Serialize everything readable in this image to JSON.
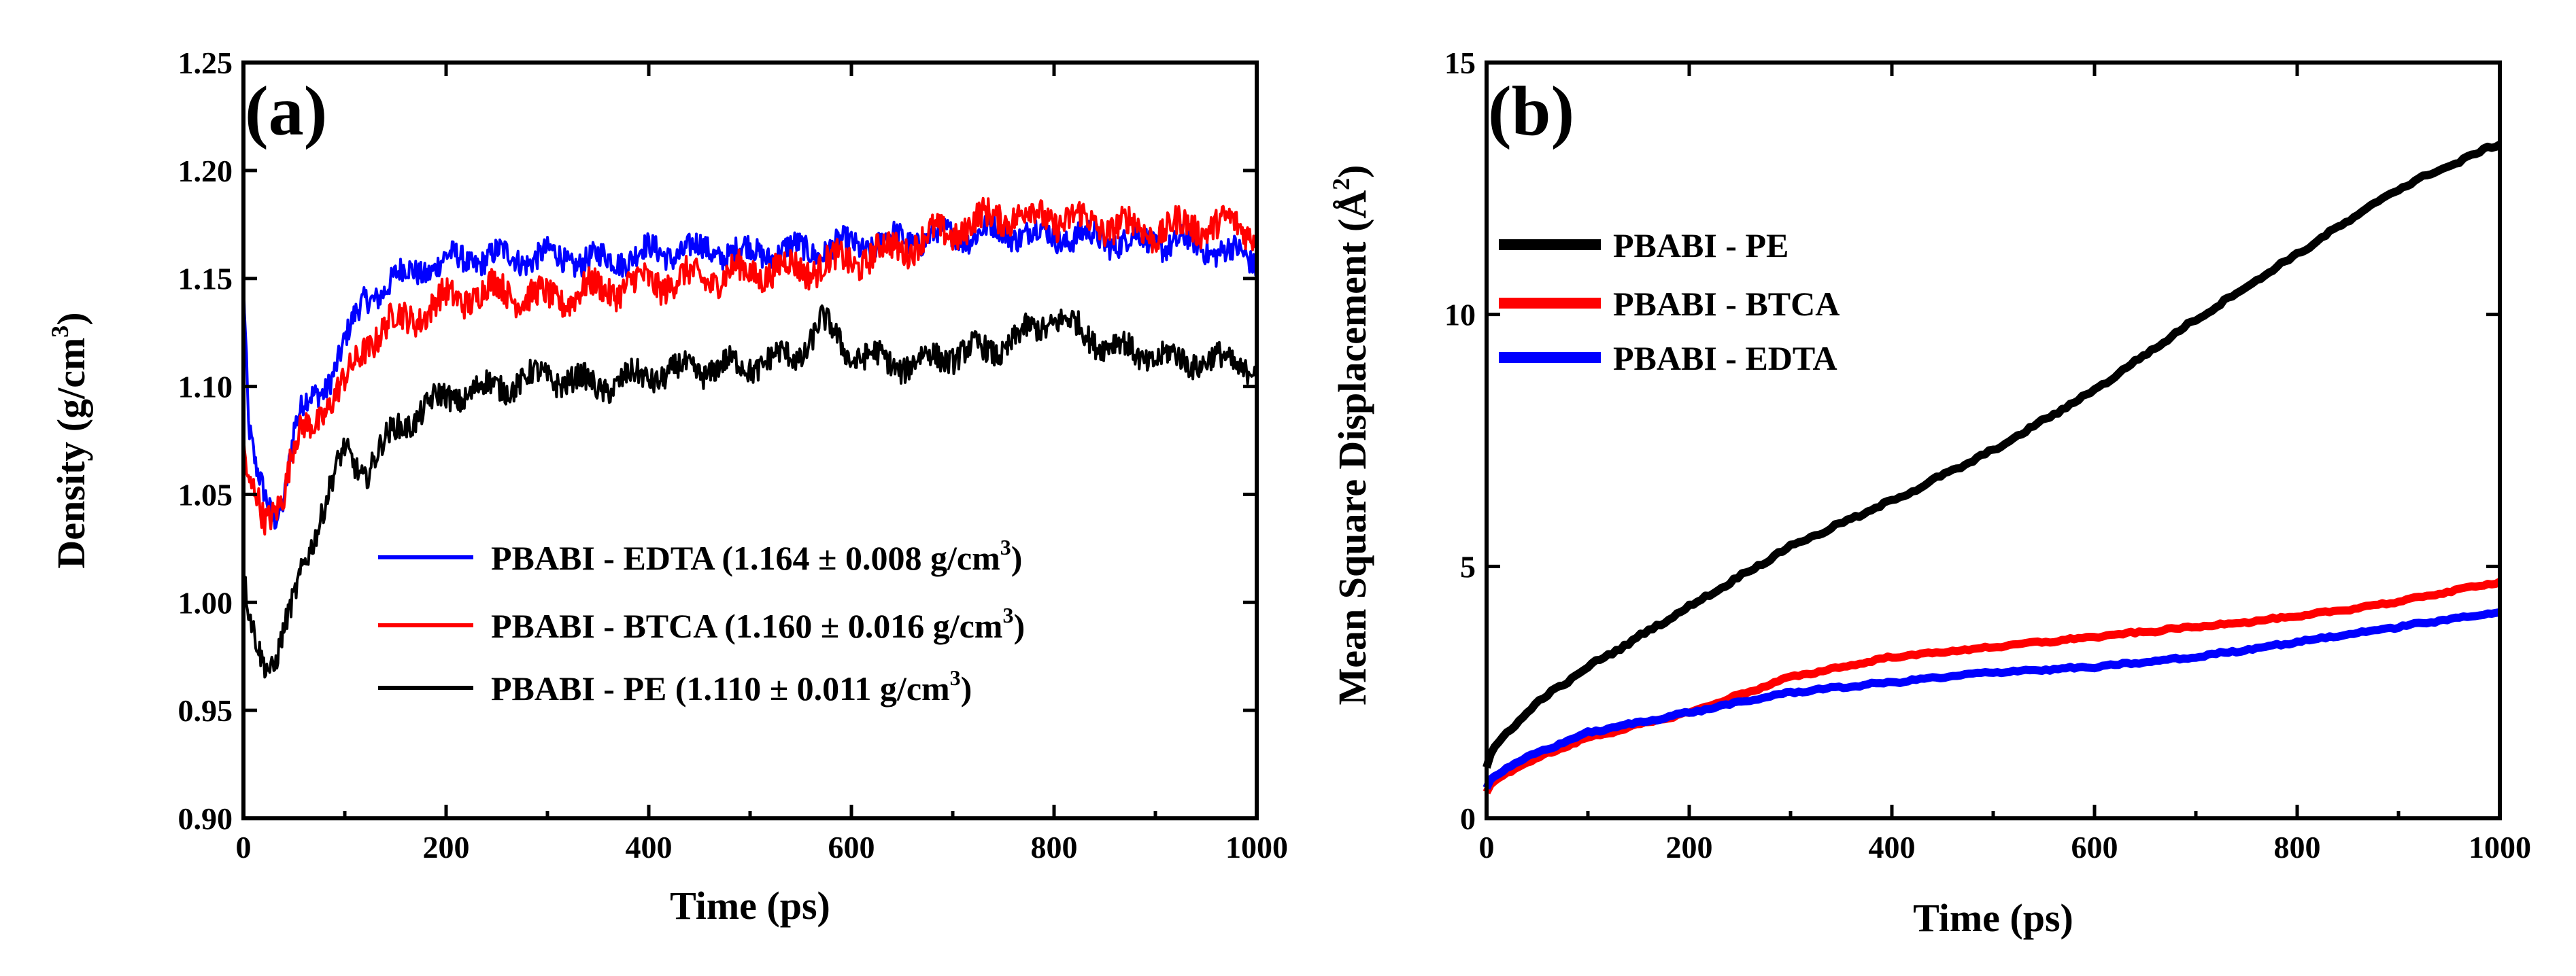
{
  "colors": {
    "edta": "#0000ff",
    "btca": "#ff0000",
    "pe": "#000000"
  },
  "chart_data": [
    {
      "panel": "(a)",
      "type": "line",
      "xlabel": "Time (ps)",
      "ylabel_main": "Density (g/cm",
      "ylabel_sup": "3",
      "ylabel_end": ")",
      "xlim": [
        0,
        1000
      ],
      "ylim": [
        0.9,
        1.25
      ],
      "xticks": [
        0,
        200,
        400,
        600,
        800,
        1000
      ],
      "xtick_labels": [
        "0",
        "200",
        "400",
        "600",
        "800",
        "1000"
      ],
      "yticks": [
        0.9,
        0.95,
        1.0,
        1.05,
        1.1,
        1.15,
        1.2,
        1.25
      ],
      "ytick_labels": [
        "0.90",
        "0.95",
        "1.00",
        "1.05",
        "1.10",
        "1.15",
        "1.20",
        "1.25"
      ],
      "legend_position": "lower-right",
      "series": [
        {
          "key": "edta",
          "name": "PBABI - EDTA (1.164 ± 0.008 g/cm",
          "name_sup": "3",
          "name_end": ")",
          "noise": 0.006,
          "x": [
            0,
            5,
            12,
            20,
            30,
            40,
            50,
            60,
            80,
            100,
            120,
            150,
            180,
            200,
            250,
            300,
            350,
            400,
            450,
            500,
            550,
            600,
            650,
            700,
            750,
            800,
            850,
            900,
            950,
            1000
          ],
          "y": [
            1.15,
            1.08,
            1.06,
            1.05,
            1.04,
            1.05,
            1.08,
            1.09,
            1.1,
            1.12,
            1.14,
            1.15,
            1.155,
            1.158,
            1.16,
            1.16,
            1.158,
            1.162,
            1.163,
            1.162,
            1.163,
            1.165,
            1.168,
            1.17,
            1.172,
            1.17,
            1.168,
            1.167,
            1.165,
            1.158
          ]
        },
        {
          "key": "btca",
          "name": "PBABI - BTCA (1.160 ± 0.016 g/cm",
          "name_sup": "3",
          "name_end": ")",
          "noise": 0.007,
          "x": [
            0,
            5,
            12,
            20,
            30,
            40,
            50,
            60,
            80,
            100,
            120,
            150,
            180,
            200,
            250,
            300,
            350,
            400,
            450,
            500,
            550,
            600,
            650,
            700,
            750,
            800,
            850,
            900,
            950,
            1000
          ],
          "y": [
            1.07,
            1.05,
            1.05,
            1.04,
            1.045,
            1.05,
            1.07,
            1.08,
            1.09,
            1.1,
            1.12,
            1.13,
            1.135,
            1.14,
            1.145,
            1.14,
            1.145,
            1.148,
            1.15,
            1.153,
            1.155,
            1.158,
            1.165,
            1.172,
            1.18,
            1.178,
            1.175,
            1.172,
            1.175,
            1.173
          ]
        },
        {
          "key": "pe",
          "name": "PBABI - PE (1.110 ± 0.011 g/cm",
          "name_sup": "3",
          "name_end": ")",
          "noise": 0.006,
          "x": [
            0,
            5,
            12,
            20,
            30,
            40,
            50,
            60,
            80,
            100,
            120,
            150,
            180,
            200,
            250,
            300,
            350,
            400,
            450,
            500,
            550,
            570,
            600,
            650,
            700,
            750,
            800,
            850,
            900,
            950,
            1000
          ],
          "y": [
            1.01,
            0.995,
            0.985,
            0.975,
            0.97,
            0.985,
            1.0,
            1.02,
            1.045,
            1.07,
            1.06,
            1.08,
            1.09,
            1.095,
            1.1,
            1.105,
            1.1,
            1.105,
            1.108,
            1.11,
            1.115,
            1.13,
            1.115,
            1.11,
            1.115,
            1.118,
            1.132,
            1.12,
            1.113,
            1.112,
            1.11
          ]
        }
      ]
    },
    {
      "panel": "(b)",
      "type": "line",
      "xlabel": "Time (ps)",
      "ylabel_main": "Mean Square Displacement (Å",
      "ylabel_sup": "2",
      "ylabel_end": ")",
      "xlim": [
        0,
        1000
      ],
      "ylim": [
        0,
        15
      ],
      "xticks": [
        0,
        200,
        400,
        600,
        800,
        1000
      ],
      "xtick_labels": [
        "0",
        "200",
        "400",
        "600",
        "800",
        "1000"
      ],
      "yticks": [
        0,
        5,
        10,
        15
      ],
      "ytick_labels": [
        "0",
        "5",
        "10",
        "15"
      ],
      "legend_position": "upper-left",
      "series": [
        {
          "key": "pe",
          "name": "PBABI - PE",
          "x": [
            0,
            5,
            20,
            50,
            100,
            200,
            300,
            400,
            500,
            600,
            700,
            800,
            900,
            1000
          ],
          "y": [
            1.0,
            1.3,
            1.7,
            2.3,
            3.0,
            4.2,
            5.4,
            6.3,
            7.3,
            8.5,
            9.9,
            11.2,
            12.5,
            13.4
          ],
          "noise": 0.03
        },
        {
          "key": "btca",
          "name": "PBABI - BTCA",
          "x": [
            0,
            5,
            20,
            50,
            100,
            200,
            300,
            400,
            500,
            600,
            700,
            800,
            900,
            1000
          ],
          "y": [
            0.5,
            0.7,
            0.9,
            1.2,
            1.6,
            2.1,
            2.8,
            3.2,
            3.4,
            3.6,
            3.8,
            4.0,
            4.3,
            4.7
          ],
          "noise": 0.02
        },
        {
          "key": "edta",
          "name": "PBABI - EDTA",
          "x": [
            0,
            5,
            20,
            50,
            100,
            200,
            300,
            400,
            500,
            600,
            700,
            800,
            900,
            1000
          ],
          "y": [
            0.6,
            0.8,
            1.0,
            1.3,
            1.7,
            2.1,
            2.5,
            2.7,
            2.9,
            3.0,
            3.2,
            3.5,
            3.8,
            4.1
          ],
          "noise": 0.02
        }
      ]
    }
  ]
}
